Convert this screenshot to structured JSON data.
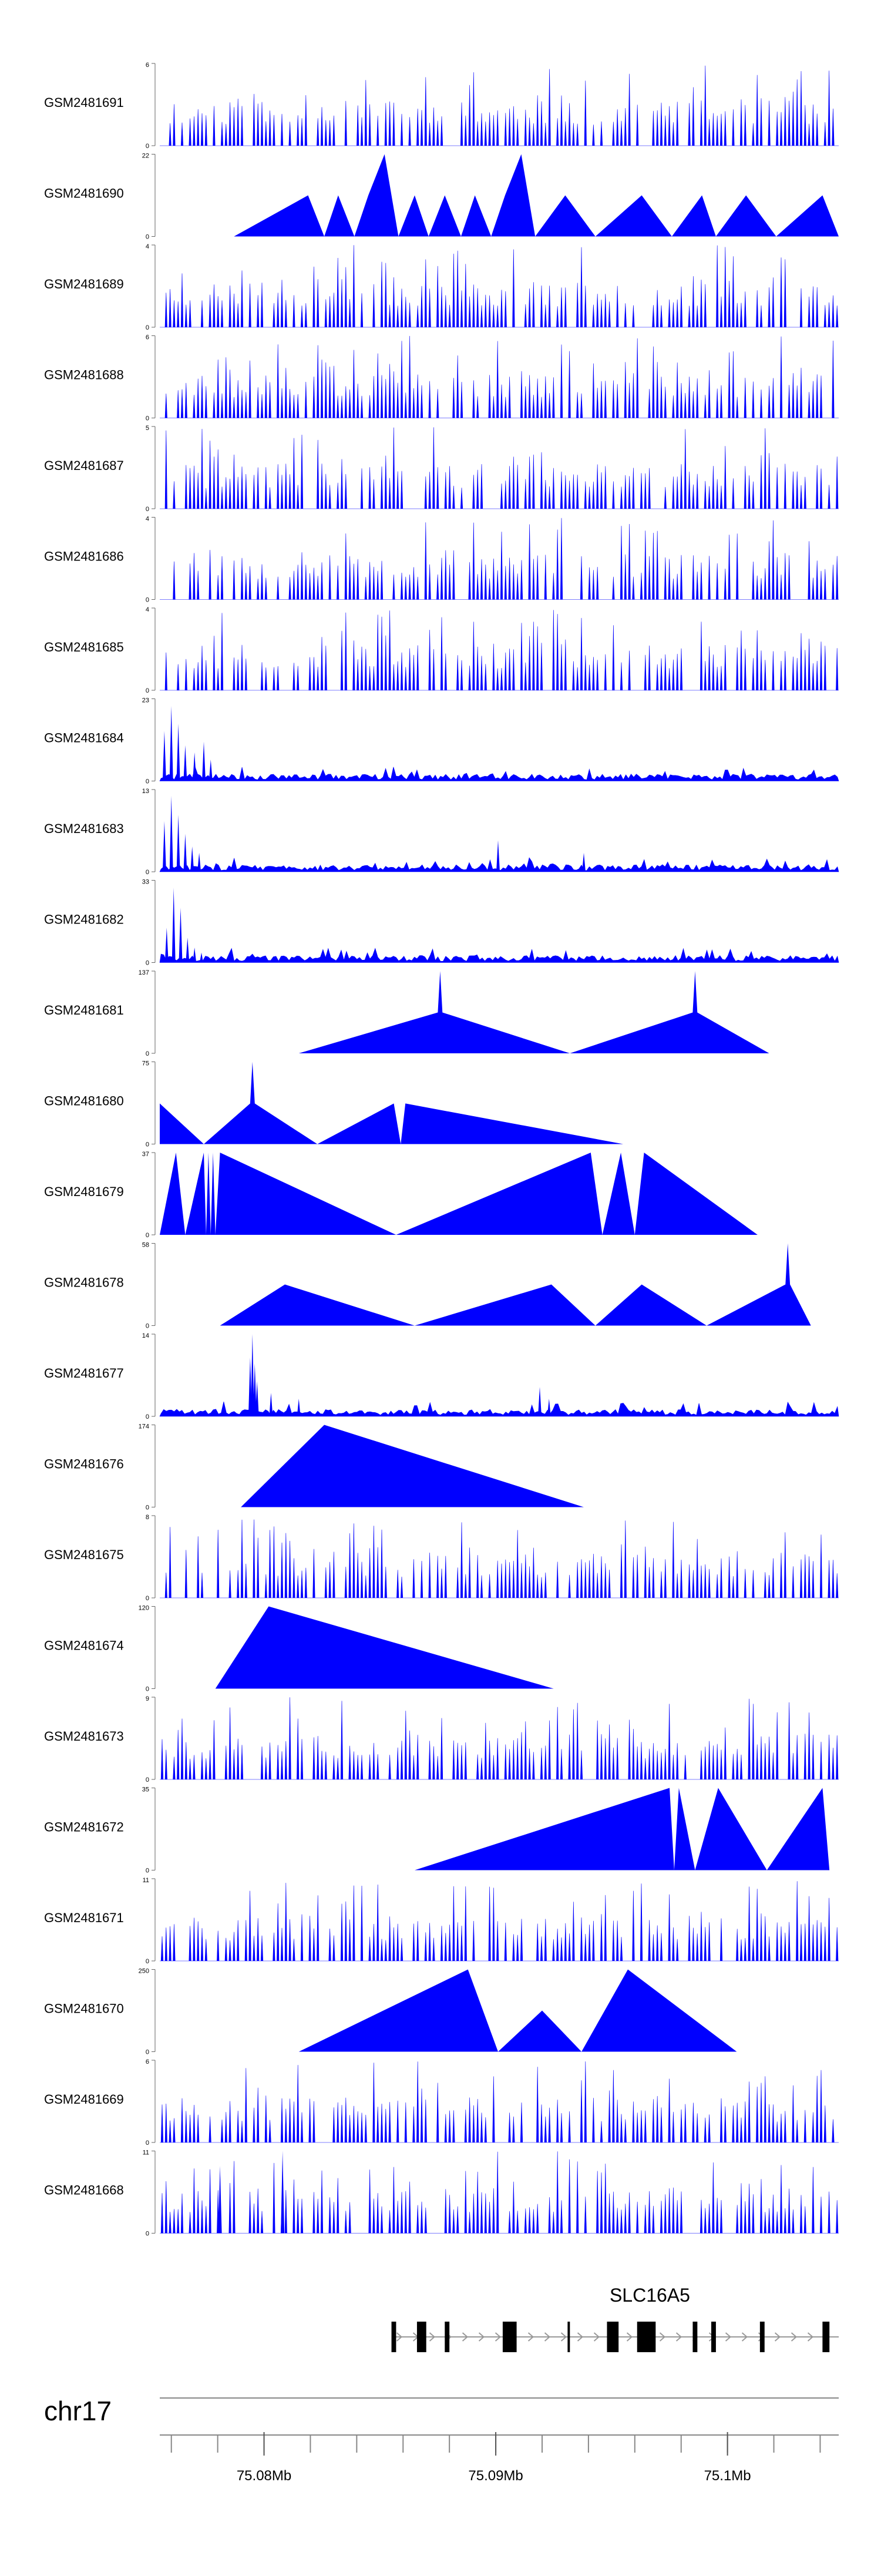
{
  "chart_data": {
    "type": "area",
    "title": "",
    "chromosome": "chr17",
    "gene": "SLC16A5",
    "xlabel": "",
    "xlim": [
      75.0755,
      75.1048
    ],
    "x_ticks": [
      "75.08Mb",
      "75.09Mb",
      "75.1Mb"
    ],
    "x_tick_values": [
      75.08,
      75.09,
      75.1
    ],
    "colors": {
      "signal": "#0000ff",
      "gene": "#000000",
      "intron": "#999999",
      "axis": "#666666"
    },
    "tracks": [
      {
        "name": "GSM2481691",
        "ymax": 6,
        "ymin_label": "0",
        "ymax_label": "6",
        "style": "dense",
        "seed": 11,
        "peaks": []
      },
      {
        "name": "GSM2481690",
        "ymax": 22,
        "ymin_label": "0",
        "ymax_label": "22",
        "style": "sparse",
        "points": [
          [
            75.0787,
            0
          ],
          [
            75.0819,
            11
          ],
          [
            75.0826,
            0
          ],
          [
            75.0832,
            11
          ],
          [
            75.0839,
            0
          ],
          [
            75.0845,
            11
          ],
          [
            75.0852,
            22
          ],
          [
            75.0858,
            0
          ],
          [
            75.0865,
            11
          ],
          [
            75.0871,
            0
          ],
          [
            75.0878,
            11
          ],
          [
            75.0885,
            0
          ],
          [
            75.0891,
            11
          ],
          [
            75.0898,
            0
          ],
          [
            75.0904,
            11
          ],
          [
            75.0911,
            22
          ],
          [
            75.0917,
            0
          ],
          [
            75.093,
            11
          ],
          [
            75.0943,
            0
          ],
          [
            75.0963,
            11
          ],
          [
            75.0976,
            0
          ],
          [
            75.0989,
            11
          ],
          [
            75.0995,
            0
          ],
          [
            75.1008,
            11
          ],
          [
            75.1021,
            0
          ],
          [
            75.1041,
            11
          ],
          [
            75.1048,
            0
          ]
        ]
      },
      {
        "name": "GSM2481689",
        "ymax": 4,
        "ymin_label": "0",
        "ymax_label": "4",
        "style": "dense",
        "seed": 23,
        "peaks": []
      },
      {
        "name": "GSM2481688",
        "ymax": 6,
        "ymin_label": "0",
        "ymax_label": "6",
        "style": "dense",
        "seed": 37,
        "peaks": []
      },
      {
        "name": "GSM2481687",
        "ymax": 5,
        "ymin_label": "0",
        "ymax_label": "5",
        "style": "dense",
        "seed": 41,
        "peaks": []
      },
      {
        "name": "GSM2481686",
        "ymax": 4,
        "ymin_label": "0",
        "ymax_label": "4",
        "style": "dense",
        "seed": 53,
        "peaks": []
      },
      {
        "name": "GSM2481685",
        "ymax": 4,
        "ymin_label": "0",
        "ymax_label": "4",
        "style": "dense",
        "seed": 67,
        "peaks": []
      },
      {
        "name": "GSM2481684",
        "ymax": 23,
        "ymin_label": "0",
        "ymax_label": "23",
        "style": "lowdense",
        "seed": 71,
        "peaks": [
          [
            75.0757,
            14
          ],
          [
            75.076,
            21
          ],
          [
            75.0763,
            16
          ],
          [
            75.0766,
            10
          ],
          [
            75.077,
            8
          ],
          [
            75.0774,
            11
          ],
          [
            75.0777,
            6
          ]
        ]
      },
      {
        "name": "GSM2481683",
        "ymax": 13,
        "ymin_label": "0",
        "ymax_label": "13",
        "style": "lowdense",
        "seed": 83,
        "peaks": [
          [
            75.0757,
            8
          ],
          [
            75.076,
            12
          ],
          [
            75.0763,
            9
          ],
          [
            75.0766,
            6
          ],
          [
            75.0769,
            4
          ],
          [
            75.0772,
            3
          ],
          [
            75.0901,
            5
          ],
          [
            75.0938,
            3
          ]
        ]
      },
      {
        "name": "GSM2481682",
        "ymax": 33,
        "ymin_label": "0",
        "ymax_label": "33",
        "style": "lowdense",
        "seed": 97,
        "peaks": [
          [
            75.0758,
            14
          ],
          [
            75.0761,
            30
          ],
          [
            75.0764,
            22
          ],
          [
            75.0767,
            10
          ],
          [
            75.077,
            6
          ],
          [
            75.0773,
            4
          ]
        ]
      },
      {
        "name": "GSM2481681",
        "ymax": 137,
        "ymin_label": "0",
        "ymax_label": "137",
        "style": "sparse",
        "points": [
          [
            75.0815,
            0
          ],
          [
            75.0875,
            68
          ],
          [
            75.0876,
            137
          ],
          [
            75.0877,
            68
          ],
          [
            75.0932,
            0
          ],
          [
            75.0985,
            68
          ],
          [
            75.0986,
            137
          ],
          [
            75.0987,
            68
          ],
          [
            75.1018,
            0
          ]
        ]
      },
      {
        "name": "GSM2481680",
        "ymax": 75,
        "ymin_label": "0",
        "ymax_label": "75",
        "style": "sparse",
        "points": [
          [
            75.0755,
            37
          ],
          [
            75.0774,
            0
          ],
          [
            75.0794,
            37
          ],
          [
            75.0795,
            75
          ],
          [
            75.0796,
            37
          ],
          [
            75.0823,
            0
          ],
          [
            75.0856,
            37
          ],
          [
            75.0859,
            0
          ],
          [
            75.0861,
            37
          ],
          [
            75.0955,
            0
          ]
        ]
      },
      {
        "name": "GSM2481679",
        "ymax": 37,
        "ymin_label": "0",
        "ymax_label": "37",
        "style": "sparse",
        "points": [
          [
            75.0755,
            0
          ],
          [
            75.0762,
            37
          ],
          [
            75.0766,
            0
          ],
          [
            75.0774,
            37
          ],
          [
            75.0775,
            0
          ],
          [
            75.0776,
            37
          ],
          [
            75.0777,
            0
          ],
          [
            75.0778,
            37
          ],
          [
            75.0779,
            0
          ],
          [
            75.0781,
            37
          ],
          [
            75.0857,
            0
          ],
          [
            75.0941,
            37
          ],
          [
            75.0946,
            0
          ],
          [
            75.0954,
            37
          ],
          [
            75.096,
            0
          ],
          [
            75.0964,
            37
          ],
          [
            75.1013,
            0
          ]
        ]
      },
      {
        "name": "GSM2481678",
        "ymax": 58,
        "ymin_label": "0",
        "ymax_label": "58",
        "style": "sparse",
        "points": [
          [
            75.0781,
            0
          ],
          [
            75.0809,
            29
          ],
          [
            75.0865,
            0
          ],
          [
            75.0924,
            29
          ],
          [
            75.0943,
            0
          ],
          [
            75.0963,
            29
          ],
          [
            75.0991,
            0
          ],
          [
            75.1025,
            29
          ],
          [
            75.1026,
            58
          ],
          [
            75.1027,
            29
          ],
          [
            75.1036,
            0
          ]
        ]
      },
      {
        "name": "GSM2481677",
        "ymax": 14,
        "ymin_label": "0",
        "ymax_label": "14",
        "style": "lowdense",
        "seed": 101,
        "peaks": [
          [
            75.0794,
            10
          ],
          [
            75.0795,
            14
          ],
          [
            75.0796,
            9
          ],
          [
            75.0797,
            6
          ],
          [
            75.0803,
            4
          ],
          [
            75.0815,
            3
          ],
          [
            75.0919,
            5
          ],
          [
            75.0923,
            3
          ]
        ]
      },
      {
        "name": "GSM2481676",
        "ymax": 174,
        "ymin_label": "0",
        "ymax_label": "174",
        "style": "sparse",
        "points": [
          [
            75.079,
            0
          ],
          [
            75.0826,
            174
          ],
          [
            75.0938,
            0
          ]
        ]
      },
      {
        "name": "GSM2481675",
        "ymax": 8,
        "ymin_label": "0",
        "ymax_label": "8",
        "style": "dense",
        "seed": 113,
        "peaks": []
      },
      {
        "name": "GSM2481674",
        "ymax": 120,
        "ymin_label": "0",
        "ymax_label": "120",
        "style": "sparse",
        "points": [
          [
            75.0779,
            0
          ],
          [
            75.0802,
            120
          ],
          [
            75.0925,
            0
          ]
        ]
      },
      {
        "name": "GSM2481673",
        "ymax": 9,
        "ymin_label": "0",
        "ymax_label": "9",
        "style": "dense",
        "seed": 127,
        "peaks": []
      },
      {
        "name": "GSM2481672",
        "ymax": 35,
        "ymin_label": "0",
        "ymax_label": "35",
        "style": "sparse",
        "points": [
          [
            75.0865,
            0
          ],
          [
            75.0975,
            35
          ],
          [
            75.0977,
            0
          ],
          [
            75.0979,
            35
          ],
          [
            75.0986,
            0
          ],
          [
            75.0996,
            35
          ],
          [
            75.1017,
            0
          ],
          [
            75.1041,
            35
          ],
          [
            75.1044,
            0
          ]
        ]
      },
      {
        "name": "GSM2481671",
        "ymax": 11,
        "ymin_label": "0",
        "ymax_label": "11",
        "style": "dense",
        "seed": 131,
        "peaks": []
      },
      {
        "name": "GSM2481670",
        "ymax": 250,
        "ymin_label": "0",
        "ymax_label": "250",
        "style": "sparse",
        "points": [
          [
            75.0815,
            0
          ],
          [
            75.0888,
            250
          ],
          [
            75.0901,
            0
          ],
          [
            75.092,
            125
          ],
          [
            75.0937,
            0
          ],
          [
            75.0957,
            250
          ],
          [
            75.1004,
            0
          ]
        ]
      },
      {
        "name": "GSM2481669",
        "ymax": 6,
        "ymin_label": "0",
        "ymax_label": "6",
        "style": "dense",
        "seed": 137,
        "peaks": []
      },
      {
        "name": "GSM2481668",
        "ymax": 11,
        "ymin_label": "0",
        "ymax_label": "11",
        "style": "dense",
        "seed": 149,
        "peaks": [
          [
            75.0781,
            9
          ],
          [
            75.0808,
            11
          ]
        ]
      }
    ],
    "gene_model": {
      "start": 75.0855,
      "end": 75.1048,
      "strand": "+",
      "exons": [
        [
          75.0855,
          75.0857
        ],
        [
          75.0866,
          75.087
        ],
        [
          75.0878,
          75.088
        ],
        [
          75.0903,
          75.0909
        ],
        [
          75.0931,
          75.0932
        ],
        [
          75.0948,
          75.0953
        ],
        [
          75.0961,
          75.0969
        ],
        [
          75.0985,
          75.0987
        ],
        [
          75.0993,
          75.0995
        ],
        [
          75.1014,
          75.1016
        ],
        [
          75.1041,
          75.1044
        ]
      ]
    }
  }
}
